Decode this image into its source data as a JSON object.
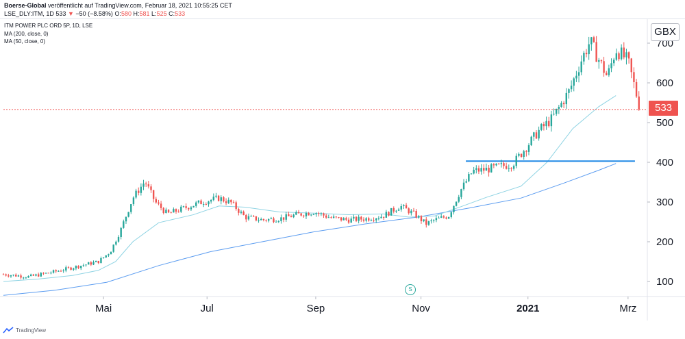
{
  "header": {
    "author": "Boerse-Global",
    "published": "veröffentlicht auf TradingView.com, Februar 18, 2021 10:55:25 CET",
    "symbol": "LSE_DLY:ITM, 1D",
    "last": "533",
    "arrow": "▼",
    "change": "−50 (−8.58%)",
    "ohlc": {
      "o_label": "O:",
      "o": "580",
      "h_label": "H:",
      "h": "581",
      "l_label": "L:",
      "l": "525",
      "c_label": "C:",
      "c": "533"
    }
  },
  "legend": {
    "title": "ITM POWER PLC ORD 5P, 1D, LSE",
    "ma200": "MA (200, close, 0)",
    "ma50": "MA (50, close, 0)"
  },
  "currency": "GBX",
  "last_price_label": "533",
  "dividend_marker": "S",
  "footer": {
    "brand": "TradingView"
  },
  "colors": {
    "up": "#26a69a",
    "down": "#ef5350",
    "ma50": "#8ed3e3",
    "ma200": "#5b9cf0",
    "support": "#1e88e5",
    "price_line": "#ef5350"
  },
  "chart_data": {
    "type": "candlestick",
    "x_ticks": [
      {
        "label": "Mai",
        "t": 58
      },
      {
        "label": "Jul",
        "t": 118
      },
      {
        "label": "Sep",
        "t": 181
      },
      {
        "label": "Nov",
        "t": 242
      },
      {
        "label": "2021",
        "t": 304
      },
      {
        "label": "Mrz",
        "t": 362
      }
    ],
    "y_ticks": [
      100,
      200,
      300,
      400,
      500,
      600,
      700
    ],
    "y_range": [
      55,
      750
    ],
    "t_range": [
      0,
      370
    ],
    "last_price": 533,
    "support_level": {
      "value": 403,
      "from_t": 268,
      "to_t": 366
    },
    "ma200_points": [
      [
        0,
        65
      ],
      [
        30,
        78
      ],
      [
        60,
        98
      ],
      [
        90,
        140
      ],
      [
        120,
        175
      ],
      [
        150,
        200
      ],
      [
        180,
        225
      ],
      [
        210,
        245
      ],
      [
        240,
        262
      ],
      [
        270,
        285
      ],
      [
        300,
        310
      ],
      [
        325,
        348
      ],
      [
        345,
        380
      ],
      [
        355,
        397
      ]
    ],
    "ma50_points": [
      [
        0,
        100
      ],
      [
        20,
        106
      ],
      [
        40,
        115
      ],
      [
        55,
        128
      ],
      [
        65,
        150
      ],
      [
        75,
        200
      ],
      [
        90,
        248
      ],
      [
        110,
        268
      ],
      [
        125,
        290
      ],
      [
        140,
        287
      ],
      [
        160,
        275
      ],
      [
        180,
        272
      ],
      [
        200,
        268
      ],
      [
        220,
        270
      ],
      [
        235,
        262
      ],
      [
        250,
        265
      ],
      [
        265,
        288
      ],
      [
        280,
        312
      ],
      [
        300,
        340
      ],
      [
        315,
        400
      ],
      [
        330,
        485
      ],
      [
        345,
        540
      ],
      [
        355,
        568
      ]
    ],
    "price_path": [
      [
        0,
        118
      ],
      [
        15,
        112
      ],
      [
        30,
        125
      ],
      [
        45,
        140
      ],
      [
        55,
        150
      ],
      [
        62,
        175
      ],
      [
        68,
        230
      ],
      [
        75,
        310
      ],
      [
        82,
        352
      ],
      [
        88,
        300
      ],
      [
        95,
        270
      ],
      [
        105,
        285
      ],
      [
        115,
        300
      ],
      [
        125,
        310
      ],
      [
        132,
        298
      ],
      [
        140,
        262
      ],
      [
        150,
        255
      ],
      [
        160,
        258
      ],
      [
        170,
        268
      ],
      [
        180,
        275
      ],
      [
        190,
        260
      ],
      [
        200,
        255
      ],
      [
        210,
        258
      ],
      [
        220,
        265
      ],
      [
        230,
        290
      ],
      [
        238,
        270
      ],
      [
        245,
        245
      ],
      [
        250,
        255
      ],
      [
        258,
        265
      ],
      [
        265,
        330
      ],
      [
        272,
        378
      ],
      [
        280,
        382
      ],
      [
        288,
        390
      ],
      [
        295,
        395
      ],
      [
        303,
        438
      ],
      [
        310,
        478
      ],
      [
        318,
        510
      ],
      [
        328,
        580
      ],
      [
        335,
        658
      ],
      [
        340,
        705
      ],
      [
        344,
        668
      ],
      [
        350,
        615
      ],
      [
        355,
        685
      ],
      [
        362,
        655
      ],
      [
        369,
        533
      ]
    ]
  }
}
